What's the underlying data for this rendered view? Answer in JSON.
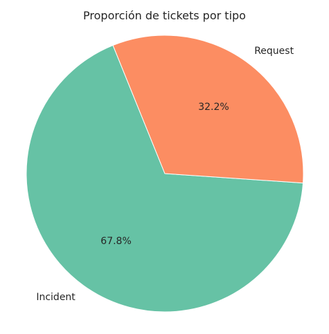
{
  "chart_data": {
    "type": "pie",
    "title": "Proporción de tickets por tipo",
    "categories": [
      "Incident",
      "Request"
    ],
    "values": [
      67.8,
      32.2
    ],
    "labels": [
      "67.8%",
      "32.2%"
    ],
    "colors": [
      "#66c2a5",
      "#fc8d62"
    ],
    "start_angle_deg": 112,
    "direction": "counterclockwise",
    "edge_color": "#ffffff"
  }
}
